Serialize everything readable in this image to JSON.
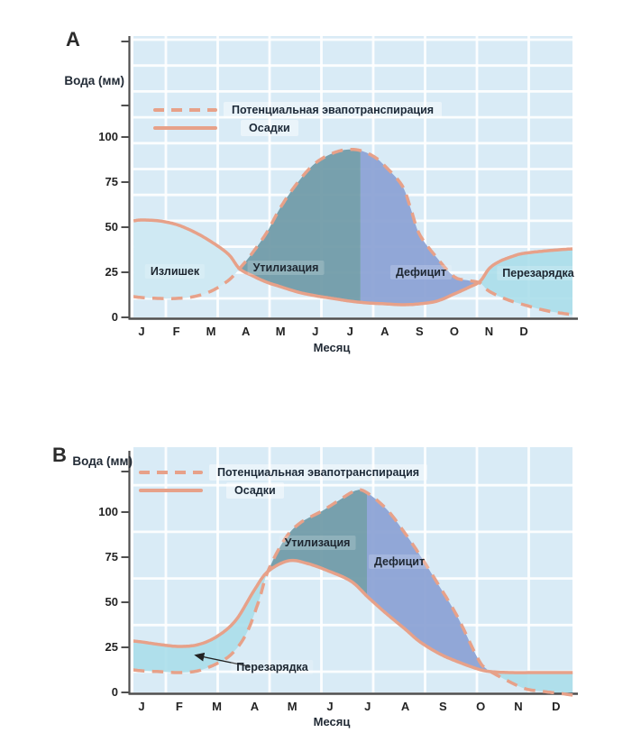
{
  "figure": {
    "background": "#ffffff",
    "colors": {
      "plot_background": "#d9ebf6",
      "gridline": "#ffffff",
      "curve": "#e7a189",
      "utilization_fill": "#6f9aa7",
      "deficit_fill": "#8ba1d4",
      "recharge_fill": "#a9dde9",
      "surplus_fill": "#cfe9f3",
      "axis": "#4f4f4f",
      "text": "#222b36"
    }
  },
  "chart_data": [
    {
      "id": "A",
      "type": "area",
      "title": "A",
      "ylabel": "Вода (мм)",
      "xlabel": "Месяц",
      "months": [
        "J",
        "F",
        "M",
        "A",
        "M",
        "J",
        "J",
        "A",
        "S",
        "O",
        "N",
        "D"
      ],
      "y_ticks": [
        0,
        25,
        50,
        75,
        100
      ],
      "ylim": [
        0,
        155
      ],
      "grid": true,
      "series": [
        {
          "name": "Потенциальная эвапотранспирация",
          "style": "dashed",
          "color": "#e7a189",
          "monthly_mm": [
            11,
            10.5,
            14.5,
            32,
            61,
            85.5,
            92.5,
            84,
            46,
            22.5,
            14.5,
            7
          ],
          "points": {
            "m": [
              -0.23,
              0,
              0.5,
              1,
              1.5,
              2,
              2.5,
              2.82,
              3.2,
              3.6,
              4,
              4.5,
              5,
              5.5,
              5.9,
              6.3,
              6.7,
              7,
              7.5,
              7.75,
              8,
              8.5,
              9,
              9.4,
              9.74,
              10,
              10.5,
              11,
              11.7,
              12.4
            ],
            "mm": [
              11.5,
              11,
              10.5,
              10.5,
              11.5,
              14.5,
              20.5,
              27,
              36,
              47,
              61,
              75,
              85.5,
              91,
              93,
              92.5,
              89,
              84,
              73,
              60,
              46,
              33,
              22.5,
              20.5,
              19,
              14.5,
              10,
              7,
              3.5,
              1.5
            ]
          }
        },
        {
          "name": "Осадки",
          "style": "solid",
          "color": "#e7a189",
          "monthly_mm": [
            54,
            51.5,
            42,
            25,
            17,
            12,
            9,
            7.5,
            7.5,
            13,
            27,
            35.5
          ],
          "points": {
            "m": [
              -0.23,
              0,
              0.5,
              1,
              1.5,
              2,
              2.5,
              2.82,
              3.2,
              3.6,
              4,
              4.5,
              5,
              5.5,
              6,
              6.5,
              7,
              7.5,
              8,
              8.5,
              9,
              9.4,
              9.74,
              10,
              10.3,
              10.7,
              11,
              11.7,
              12.4
            ],
            "mm": [
              53.5,
              54,
              53.5,
              51.5,
              47.5,
              42,
              35,
              27,
              23,
              19.5,
              17,
              14,
              12,
              10.5,
              9,
              8,
              7.5,
              7,
              7.5,
              9,
              13,
              16.5,
              20,
              27,
              31,
              34,
              35.5,
              37,
              38
            ]
          }
        }
      ],
      "regions": [
        {
          "label": "Излишек",
          "from_m": -0.23,
          "to_m": 2.82,
          "upper_series": 1,
          "color": "#cfe9f3",
          "opacity": 1
        },
        {
          "label": "Утилизация",
          "from_m": 2.82,
          "to_m": 6.3,
          "upper_series": 0,
          "color": "#6f9aa7",
          "opacity": 0.93
        },
        {
          "label": "Дефицит",
          "from_m": 6.3,
          "to_m": 9.74,
          "upper_series": 0,
          "color": "#8ba1d4",
          "opacity": 0.93
        },
        {
          "label": "Перезарядка",
          "from_m": 9.74,
          "to_m": 12.4,
          "upper_series": 1,
          "color": "#a9dde9",
          "opacity": 0.88
        }
      ]
    },
    {
      "id": "B",
      "type": "area",
      "title": "B",
      "ylabel": "Вода (мм)",
      "xlabel": "Месяц",
      "months": [
        "J",
        "F",
        "M",
        "A",
        "M",
        "J",
        "J",
        "A",
        "S",
        "O",
        "N",
        "D"
      ],
      "y_ticks": [
        0,
        25,
        50,
        75,
        100
      ],
      "ylim": [
        0,
        135
      ],
      "grid": true,
      "series": [
        {
          "name": "Потенциальная эвапотранспирация",
          "style": "dashed",
          "color": "#e7a189",
          "monthly_mm": [
            12,
            11,
            16,
            36,
            90,
            104,
            110.5,
            88,
            57,
            18,
            2.5,
            0
          ],
          "points": {
            "m": [
              -0.22,
              0,
              0.5,
              1,
              1.5,
              2,
              2.4,
              2.78,
              3.1,
              3.35,
              3.8,
              4.21,
              4.78,
              5.2,
              5.69,
              6,
              6.53,
              7,
              7.39,
              7.9,
              8.37,
              8.92,
              9.16,
              9.71,
              10.19,
              10.67,
              11.08,
              11.44
            ],
            "mm": [
              12.5,
              12,
              11.5,
              11,
              12,
              16,
              21.5,
              32.5,
              50,
              67,
              85,
              94,
              100.5,
              106,
              112,
              110.5,
              101,
              88,
              76,
              59,
              42.5,
              19,
              13,
              6.5,
              2,
              0.5,
              -0.5,
              -1.5
            ]
          }
        },
        {
          "name": "Осадки",
          "style": "solid",
          "color": "#e7a189",
          "monthly_mm": [
            28,
            25.5,
            31,
            57,
            72.5,
            67,
            53,
            35,
            22,
            13.5,
            11,
            11
          ],
          "points": {
            "m": [
              -0.22,
              0,
              0.5,
              1,
              1.5,
              2,
              2.5,
              3,
              3.35,
              3.9,
              4.4,
              5,
              5.57,
              6,
              6.48,
              7,
              7.39,
              7.9,
              8.33,
              8.92,
              9.28,
              9.8,
              10.5,
              11.44
            ],
            "mm": [
              28.5,
              28,
              26.5,
              25.5,
              26.5,
              31,
              40,
              57,
              67,
              73,
              71.5,
              67,
              61.5,
              53,
              44,
              35,
              28,
              21.5,
              17.5,
              13,
              11.5,
              11,
              11,
              11
            ]
          }
        }
      ],
      "regions": [
        {
          "label": "Перезарядка",
          "from_m": -0.22,
          "to_m": 3.35,
          "upper_series": 1,
          "color": "#a9dde9",
          "opacity": 0.88
        },
        {
          "label": "Утилизация",
          "from_m": 3.35,
          "to_m": 5.98,
          "upper_series": 0,
          "color": "#6f9aa7",
          "opacity": 0.93
        },
        {
          "label": "Дефицит",
          "from_m": 5.98,
          "to_m": 9.16,
          "upper_series": 0,
          "color": "#8ba1d4",
          "opacity": 0.93
        },
        {
          "label": "Перезарядка",
          "from_m": 9.16,
          "to_m": 11.44,
          "upper_series": 1,
          "color": "#a9dde9",
          "opacity": 0.88
        }
      ]
    }
  ]
}
